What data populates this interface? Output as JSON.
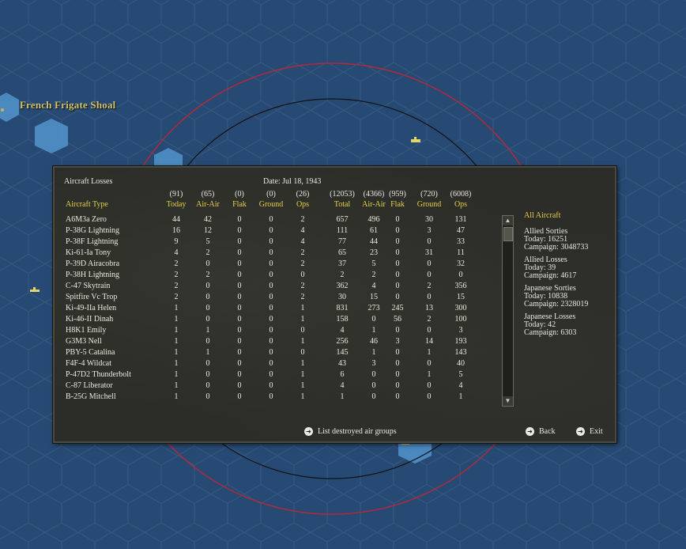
{
  "map": {
    "location_label": "French Frigate Shoal"
  },
  "panel": {
    "title": "Aircraft Losses",
    "date": "Date: Jul 18, 1943",
    "columns": [
      {
        "total": "(91)",
        "label": "Today"
      },
      {
        "total": "(65)",
        "label": "Air-Air"
      },
      {
        "total": "(0)",
        "label": "Flak"
      },
      {
        "total": "(0)",
        "label": "Ground"
      },
      {
        "total": "(26)",
        "label": "Ops"
      },
      {
        "total": "(12053)",
        "label": "Total"
      },
      {
        "total": "(4366)",
        "label": "Air-Air"
      },
      {
        "total": "(959)",
        "label": "Flak"
      },
      {
        "total": "(720)",
        "label": "Ground"
      },
      {
        "total": "(6008)",
        "label": "Ops"
      }
    ],
    "type_header": "Aircraft Type",
    "rows": [
      {
        "name": "A6M3a Zero",
        "v": [
          "44",
          "42",
          "0",
          "0",
          "2",
          "657",
          "496",
          "0",
          "30",
          "131"
        ]
      },
      {
        "name": "P-38G Lightning",
        "v": [
          "16",
          "12",
          "0",
          "0",
          "4",
          "111",
          "61",
          "0",
          "3",
          "47"
        ]
      },
      {
        "name": "P-38F Lightning",
        "v": [
          "9",
          "5",
          "0",
          "0",
          "4",
          "77",
          "44",
          "0",
          "0",
          "33"
        ]
      },
      {
        "name": "Ki-61-Ia Tony",
        "v": [
          "4",
          "2",
          "0",
          "0",
          "2",
          "65",
          "23",
          "0",
          "31",
          "11"
        ]
      },
      {
        "name": "P-39D Airacobra",
        "v": [
          "2",
          "0",
          "0",
          "0",
          "2",
          "37",
          "5",
          "0",
          "0",
          "32"
        ]
      },
      {
        "name": "P-38H Lightning",
        "v": [
          "2",
          "2",
          "0",
          "0",
          "0",
          "2",
          "2",
          "0",
          "0",
          "0"
        ]
      },
      {
        "name": "C-47 Skytrain",
        "v": [
          "2",
          "0",
          "0",
          "0",
          "2",
          "362",
          "4",
          "0",
          "2",
          "356"
        ]
      },
      {
        "name": "Spitfire Vc Trop",
        "v": [
          "2",
          "0",
          "0",
          "0",
          "2",
          "30",
          "15",
          "0",
          "0",
          "15"
        ]
      },
      {
        "name": "Ki-49-IIa Helen",
        "v": [
          "1",
          "0",
          "0",
          "0",
          "1",
          "831",
          "273",
          "245",
          "13",
          "300"
        ]
      },
      {
        "name": "Ki-46-II Dinah",
        "v": [
          "1",
          "0",
          "0",
          "0",
          "1",
          "158",
          "0",
          "56",
          "2",
          "100"
        ]
      },
      {
        "name": "H8K1 Emily",
        "v": [
          "1",
          "1",
          "0",
          "0",
          "0",
          "4",
          "1",
          "0",
          "0",
          "3"
        ]
      },
      {
        "name": "G3M3 Nell",
        "v": [
          "1",
          "0",
          "0",
          "0",
          "1",
          "256",
          "46",
          "3",
          "14",
          "193"
        ]
      },
      {
        "name": "PBY-5 Catalina",
        "v": [
          "1",
          "1",
          "0",
          "0",
          "0",
          "145",
          "1",
          "0",
          "1",
          "143"
        ]
      },
      {
        "name": "F4F-4 Wildcat",
        "v": [
          "1",
          "0",
          "0",
          "0",
          "1",
          "43",
          "3",
          "0",
          "0",
          "40"
        ]
      },
      {
        "name": "P-47D2 Thunderbolt",
        "v": [
          "1",
          "0",
          "0",
          "0",
          "1",
          "6",
          "0",
          "0",
          "1",
          "5"
        ]
      },
      {
        "name": "C-87 Liberator",
        "v": [
          "1",
          "0",
          "0",
          "0",
          "1",
          "4",
          "0",
          "0",
          "0",
          "4"
        ]
      },
      {
        "name": "B-25G Mitchell",
        "v": [
          "1",
          "0",
          "0",
          "0",
          "1",
          "1",
          "0",
          "0",
          "0",
          "1"
        ]
      }
    ],
    "summary": {
      "heading": "All Aircraft",
      "allied_sorties": {
        "title": "Allied Sorties",
        "today": "Today:   16251",
        "campaign": "Campaign: 3048733"
      },
      "allied_losses": {
        "title": "Allied Losses",
        "today": "Today:   39",
        "campaign": "Campaign: 4617"
      },
      "japanese_sorties": {
        "title": "Japanese Sorties",
        "today": "Today:   10838",
        "campaign": "Campaign: 2328019"
      },
      "japanese_losses": {
        "title": "Japanese Losses",
        "today": "Today:   42",
        "campaign": "Campaign: 6303"
      }
    },
    "buttons": {
      "list_destroyed": "List destroyed air groups",
      "back": "Back",
      "exit": "Exit"
    }
  }
}
